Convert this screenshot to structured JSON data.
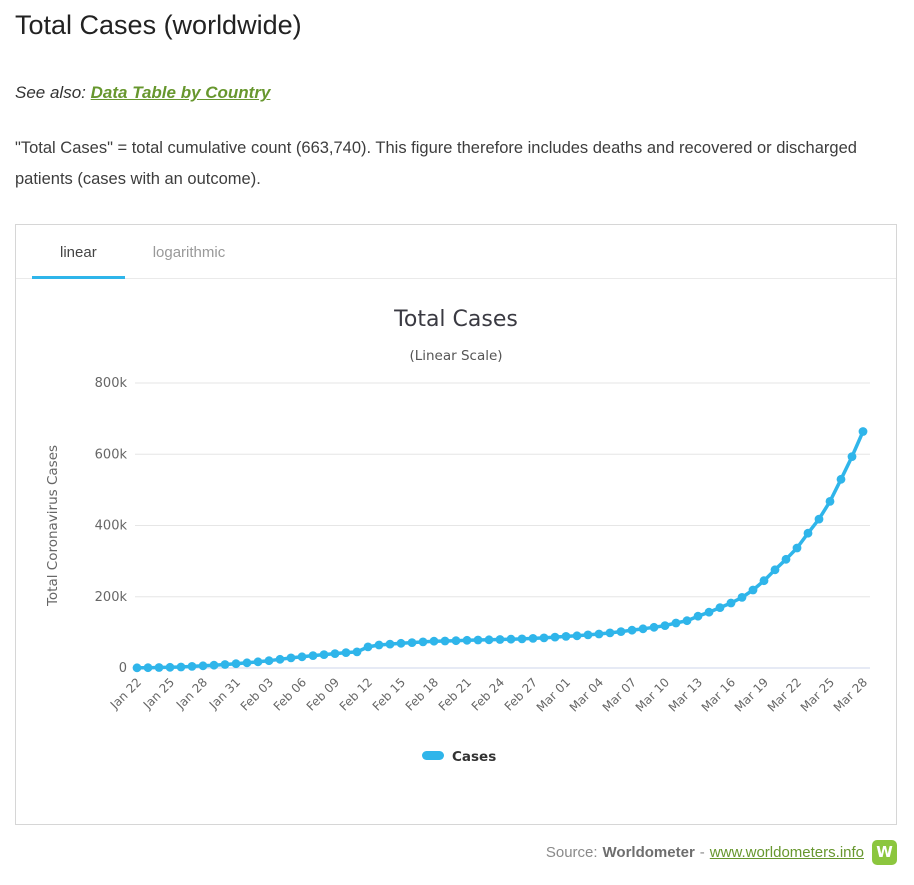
{
  "page": {
    "title": "Total Cases (worldwide)",
    "see_also_label": "See also:",
    "see_also_link": "Data Table by Country",
    "description": "\"Total Cases\" = total cumulative count (663,740). This figure therefore includes deaths and recovered or discharged patients (cases with an outcome)."
  },
  "tabs": [
    {
      "label": "linear",
      "active": true
    },
    {
      "label": "logarithmic",
      "active": false
    }
  ],
  "footer": {
    "source_label": "Source:",
    "source_name": "Worldometer",
    "separator": "-",
    "link": "www.worldometers.info",
    "logo_letter": "W"
  },
  "colors": {
    "accent_blue": "#2fb5ea",
    "link_green": "#67972e",
    "logo_green": "#8cc63e",
    "gridline": "#e6e6e6",
    "axis_line": "#ccd6eb",
    "axis_text": "#666666",
    "chart_title": "#3a3a42"
  },
  "chart_data": {
    "type": "line",
    "title": "Total Cases",
    "subtitle": "(Linear Scale)",
    "ylabel": "Total Coronavirus Cases",
    "legend_position": "bottom",
    "grid": true,
    "ylim": [
      0,
      800000
    ],
    "yticks": [
      0,
      200000,
      400000,
      600000,
      800000
    ],
    "ytick_labels": [
      "0",
      "200k",
      "400k",
      "600k",
      "800k"
    ],
    "xtick_every": 3,
    "x": [
      "Jan 22",
      "Jan 23",
      "Jan 24",
      "Jan 25",
      "Jan 26",
      "Jan 27",
      "Jan 28",
      "Jan 29",
      "Jan 30",
      "Jan 31",
      "Feb 01",
      "Feb 02",
      "Feb 03",
      "Feb 04",
      "Feb 05",
      "Feb 06",
      "Feb 07",
      "Feb 08",
      "Feb 09",
      "Feb 10",
      "Feb 11",
      "Feb 12",
      "Feb 13",
      "Feb 14",
      "Feb 15",
      "Feb 16",
      "Feb 17",
      "Feb 18",
      "Feb 19",
      "Feb 20",
      "Feb 21",
      "Feb 22",
      "Feb 23",
      "Feb 24",
      "Feb 25",
      "Feb 26",
      "Feb 27",
      "Feb 28",
      "Feb 29",
      "Mar 01",
      "Mar 02",
      "Mar 03",
      "Mar 04",
      "Mar 05",
      "Mar 06",
      "Mar 07",
      "Mar 08",
      "Mar 09",
      "Mar 10",
      "Mar 11",
      "Mar 12",
      "Mar 13",
      "Mar 14",
      "Mar 15",
      "Mar 16",
      "Mar 17",
      "Mar 18",
      "Mar 19",
      "Mar 20",
      "Mar 21",
      "Mar 22",
      "Mar 23",
      "Mar 24",
      "Mar 25",
      "Mar 26",
      "Mar 27",
      "Mar 28"
    ],
    "series": [
      {
        "name": "Cases",
        "color": "#2fb5ea",
        "values": [
          580,
          845,
          1317,
          2015,
          2800,
          4581,
          6058,
          7813,
          9823,
          11950,
          14553,
          17391,
          20630,
          24545,
          28266,
          31439,
          34876,
          37552,
          40553,
          43099,
          45134,
          59287,
          64438,
          67100,
          69197,
          71329,
          73332,
          75184,
          75700,
          76677,
          77673,
          78651,
          79205,
          80087,
          80828,
          81820,
          83112,
          84615,
          86604,
          88585,
          90443,
          93016,
          95314,
          98425,
          102050,
          106099,
          109991,
          114381,
          118948,
          126214,
          132758,
          145483,
          156653,
          169593,
          182490,
          198238,
          218822,
          244933,
          275597,
          305036,
          336953,
          378287,
          418045,
          467653,
          529591,
          593291,
          663740
        ]
      }
    ]
  }
}
